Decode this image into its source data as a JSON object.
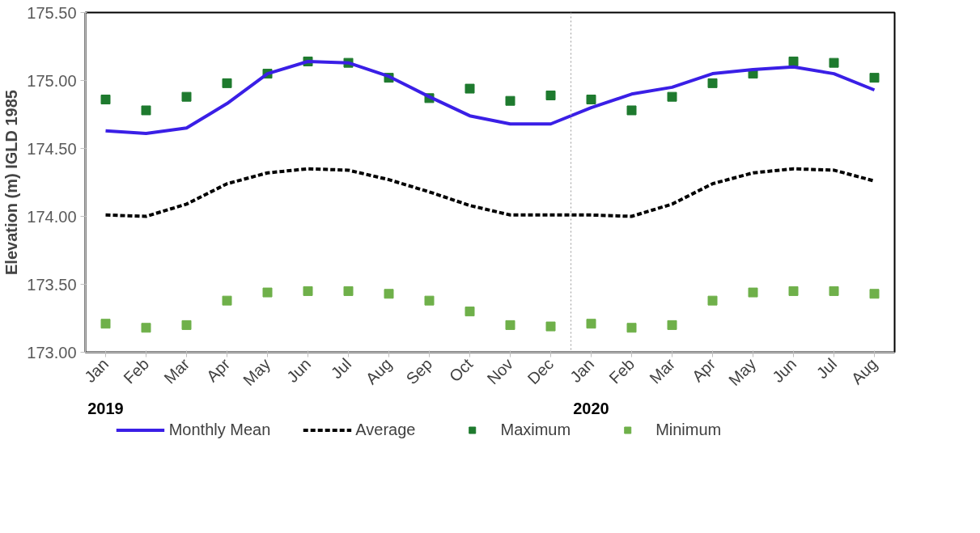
{
  "chart_data": {
    "type": "line",
    "ylabel": "Elevation (m) IGLD 1985",
    "categories": [
      "Jan",
      "Feb",
      "Mar",
      "Apr",
      "May",
      "Jun",
      "Jul",
      "Aug",
      "Sep",
      "Oct",
      "Nov",
      "Dec",
      "Jan",
      "Feb",
      "Mar",
      "Apr",
      "May",
      "Jun",
      "Jul",
      "Aug"
    ],
    "series": [
      {
        "name": "Monthly Mean",
        "line_style": "solid",
        "color": "#3a1fe6",
        "values": [
          174.63,
          174.61,
          174.65,
          174.83,
          175.05,
          175.14,
          175.13,
          175.03,
          174.88,
          174.74,
          174.68,
          174.68,
          174.8,
          174.9,
          174.95,
          175.05,
          175.08,
          175.1,
          175.05,
          174.93
        ]
      },
      {
        "name": "Average",
        "line_style": "dashed",
        "color": "#000000",
        "values": [
          174.01,
          174.0,
          174.09,
          174.24,
          174.32,
          174.35,
          174.34,
          174.27,
          174.18,
          174.08,
          174.01,
          174.01,
          174.01,
          174.0,
          174.09,
          174.24,
          174.32,
          174.35,
          174.34,
          174.26
        ]
      },
      {
        "name": "Maximum",
        "type": "scatter",
        "marker": "square",
        "color": "#1e7a2e",
        "values": [
          174.86,
          174.78,
          174.88,
          174.98,
          175.05,
          175.14,
          175.13,
          175.02,
          174.87,
          174.94,
          174.85,
          174.89,
          174.86,
          174.78,
          174.88,
          174.98,
          175.05,
          175.14,
          175.13,
          175.02
        ]
      },
      {
        "name": "Minimum",
        "type": "scatter",
        "marker": "square",
        "color": "#6fb04a",
        "values": [
          173.21,
          173.18,
          173.2,
          173.38,
          173.44,
          173.45,
          173.45,
          173.43,
          173.38,
          173.3,
          173.2,
          173.19,
          173.21,
          173.18,
          173.2,
          173.38,
          173.44,
          173.45,
          173.45,
          173.43
        ]
      }
    ],
    "ylim": [
      173.0,
      175.5
    ],
    "yticks": [
      {
        "value": 173.0,
        "label": "173.00"
      },
      {
        "value": 173.5,
        "label": "173.50"
      },
      {
        "value": 174.0,
        "label": "174.00"
      },
      {
        "value": 174.5,
        "label": "174.50"
      },
      {
        "value": 175.0,
        "label": "175.00"
      },
      {
        "value": 175.5,
        "label": "175.50"
      }
    ],
    "annotations": [
      "2019",
      "2020"
    ],
    "grid": false,
    "legend": "bottom"
  }
}
